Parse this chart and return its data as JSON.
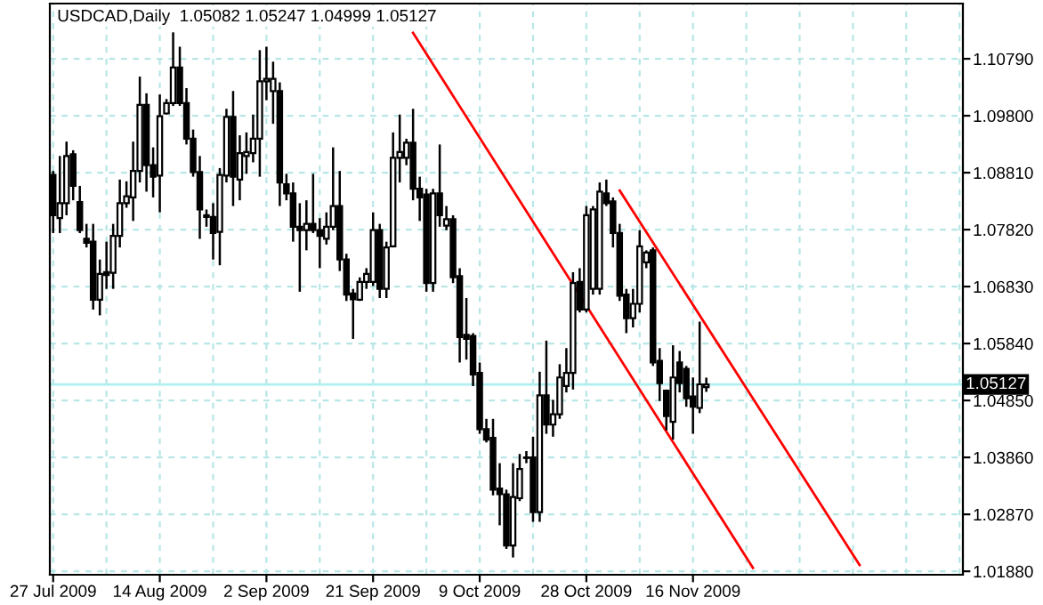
{
  "chart_data": {
    "type": "candlestick",
    "title": "USDCAD,Daily  1.05082 1.05247 1.04999 1.05127",
    "color": "#000000",
    "categories": [
      "27 Jul 2009",
      null,
      null,
      null,
      null,
      null,
      null,
      null,
      null,
      null,
      null,
      null,
      null,
      null,
      null,
      null,
      "14 Aug 2009",
      null,
      null,
      null,
      null,
      null,
      null,
      null,
      null,
      null,
      null,
      null,
      null,
      null,
      null,
      null,
      "2 Sep 2009",
      null,
      null,
      null,
      null,
      null,
      null,
      null,
      null,
      null,
      null,
      null,
      null,
      null,
      null,
      null,
      "21 Sep 2009",
      null,
      null,
      null,
      null,
      null,
      null,
      null,
      null,
      null,
      null,
      null,
      null,
      null,
      null,
      null,
      "9 Oct 2009",
      null,
      null,
      null,
      null,
      null,
      null,
      null,
      null,
      null,
      null,
      null,
      null,
      null,
      null,
      null,
      "28 Oct 2009",
      null,
      null,
      null,
      null,
      null,
      null,
      null,
      null,
      null,
      null,
      null,
      null,
      null,
      null,
      null,
      "16 Nov 2009",
      null,
      null,
      null,
      null,
      null,
      null,
      null,
      null,
      null,
      null,
      null,
      null,
      null,
      null,
      null,
      null,
      null,
      null,
      null,
      null,
      null,
      null,
      null,
      null,
      null,
      null,
      null,
      null,
      null,
      null,
      null,
      null,
      null,
      null,
      null,
      null,
      null,
      null,
      null,
      null
    ],
    "ohlc": [
      [
        1.0877,
        1.0884,
        1.0776,
        1.0807
      ],
      [
        1.0802,
        1.091,
        1.0776,
        1.0828
      ],
      [
        1.0828,
        1.0935,
        1.0807,
        1.091
      ],
      [
        1.0913,
        1.092,
        1.0833,
        1.0858
      ],
      [
        1.083,
        1.0858,
        1.0776,
        1.0781
      ],
      [
        1.0766,
        1.0792,
        1.0751,
        1.0759
      ],
      [
        1.0761,
        1.0792,
        1.0643,
        1.066
      ],
      [
        1.066,
        1.073,
        1.0633,
        1.0705
      ],
      [
        1.0708,
        1.0761,
        1.0679,
        1.0703
      ],
      [
        1.0707,
        1.0792,
        1.0679,
        1.0771
      ],
      [
        1.0771,
        1.0869,
        1.0751,
        1.0828
      ],
      [
        1.0828,
        1.0866,
        1.082,
        1.084
      ],
      [
        1.0838,
        1.0935,
        1.0797,
        1.0884
      ],
      [
        1.0884,
        1.1048,
        1.0864,
        1.0999
      ],
      [
        1.0999,
        1.1019,
        1.0848,
        1.0894
      ],
      [
        1.0894,
        1.0925,
        1.0838,
        1.0874
      ],
      [
        1.0876,
        1.1017,
        1.0812,
        1.0979
      ],
      [
        1.0984,
        1.1009,
        1.0982,
        1.1002
      ],
      [
        1.1002,
        1.1125,
        1.0997,
        1.1064
      ],
      [
        1.1064,
        1.11,
        1.0997,
        1.1002
      ],
      [
        1.1002,
        1.1028,
        1.093,
        1.094
      ],
      [
        1.094,
        1.0956,
        1.0874,
        1.0882
      ],
      [
        1.0882,
        1.091,
        1.0766,
        1.0817
      ],
      [
        1.0807,
        1.0817,
        1.0787,
        1.0804
      ],
      [
        1.0804,
        1.0828,
        1.073,
        1.0776
      ],
      [
        1.0778,
        1.0889,
        1.072,
        1.0877
      ],
      [
        1.0876,
        1.0992,
        1.0864,
        1.0978
      ],
      [
        1.0978,
        1.1023,
        1.0823,
        1.0874
      ],
      [
        1.0869,
        1.0946,
        1.0833,
        1.0915
      ],
      [
        1.091,
        1.0951,
        1.0879,
        1.0917
      ],
      [
        1.0915,
        1.0982,
        1.0899,
        1.094
      ],
      [
        1.094,
        1.1094,
        1.0874,
        1.104
      ],
      [
        1.104,
        1.11,
        1.1007,
        1.1044
      ],
      [
        1.1023,
        1.1074,
        1.0966,
        1.1044
      ],
      [
        1.1023,
        1.1038,
        1.0823,
        1.0864
      ],
      [
        1.0861,
        1.0879,
        1.0833,
        1.0845
      ],
      [
        1.0845,
        1.0864,
        1.0761,
        1.0787
      ],
      [
        1.0787,
        1.0828,
        1.0674,
        1.0781
      ],
      [
        1.0781,
        1.0833,
        1.0746,
        1.0792
      ],
      [
        1.0792,
        1.0879,
        1.0776,
        1.0781
      ],
      [
        1.0781,
        1.0802,
        1.0715,
        1.0771
      ],
      [
        1.0766,
        1.0812,
        1.0756,
        1.0787
      ],
      [
        1.0787,
        1.0925,
        1.0781,
        1.0823
      ],
      [
        1.0823,
        1.0884,
        1.071,
        1.073
      ],
      [
        1.073,
        1.074,
        1.0658,
        1.0669
      ],
      [
        1.0671,
        1.0679,
        1.0592,
        1.0661
      ],
      [
        1.066,
        1.0699,
        1.0658,
        1.0691
      ],
      [
        1.0691,
        1.0715,
        1.0679,
        1.0705
      ],
      [
        1.0691,
        1.0812,
        1.0684,
        1.0781
      ],
      [
        1.0781,
        1.0792,
        1.0663,
        1.0679
      ],
      [
        1.0679,
        1.0761,
        1.0663,
        1.0751
      ],
      [
        1.0753,
        1.0951,
        1.0751,
        1.0907
      ],
      [
        1.0907,
        1.0982,
        1.0864,
        1.0917
      ],
      [
        1.0907,
        1.094,
        1.0894,
        1.0933
      ],
      [
        1.0933,
        1.0992,
        1.0833,
        1.0853
      ],
      [
        1.0853,
        1.0874,
        1.0797,
        1.0838
      ],
      [
        1.0843,
        1.0853,
        1.0674,
        1.0689
      ],
      [
        1.0689,
        1.0853,
        1.0674,
        1.0845
      ],
      [
        1.0845,
        1.093,
        1.0787,
        1.0807
      ],
      [
        1.0789,
        1.0823,
        1.0781,
        1.08
      ],
      [
        1.08,
        1.0807,
        1.0689,
        1.0699
      ],
      [
        1.0701,
        1.0715,
        1.0551,
        1.0595
      ],
      [
        1.0599,
        1.0663,
        1.0556,
        1.0592
      ],
      [
        1.0597,
        1.0602,
        1.051,
        1.053
      ],
      [
        1.0533,
        1.0551,
        1.0427,
        1.0435
      ],
      [
        1.0435,
        1.0453,
        1.0412,
        1.0417
      ],
      [
        1.042,
        1.0453,
        1.032,
        1.033
      ],
      [
        1.0332,
        1.0376,
        1.0268,
        1.0322
      ],
      [
        1.0322,
        1.033,
        1.0227,
        1.0233
      ],
      [
        1.0233,
        1.0376,
        1.0212,
        1.0317
      ],
      [
        1.0315,
        1.0392,
        1.031,
        1.0366
      ],
      [
        1.0386,
        1.0397,
        1.0376,
        1.0385
      ],
      [
        1.0386,
        1.0422,
        1.0274,
        1.0291
      ],
      [
        1.0291,
        1.0535,
        1.0274,
        1.0494
      ],
      [
        1.0494,
        1.0589,
        1.0427,
        1.0443
      ],
      [
        1.0443,
        1.0486,
        1.0422,
        1.0461
      ],
      [
        1.0461,
        1.0548,
        1.0453,
        1.0525
      ],
      [
        1.051,
        1.0576,
        1.0499,
        1.0533
      ],
      [
        1.0533,
        1.0708,
        1.0504,
        1.0689
      ],
      [
        1.0691,
        1.0715,
        1.0638,
        1.0643
      ],
      [
        1.0643,
        1.0823,
        1.0638,
        1.0807
      ],
      [
        1.0679,
        1.0823,
        1.0669,
        1.0817
      ],
      [
        1.0679,
        1.0864,
        1.0669,
        1.0848
      ],
      [
        1.0845,
        1.0869,
        1.0823,
        1.0828
      ],
      [
        1.0831,
        1.0838,
        1.0751,
        1.0776
      ],
      [
        1.0776,
        1.0792,
        1.0658,
        1.0667
      ],
      [
        1.0669,
        1.0679,
        1.0602,
        1.0628
      ],
      [
        1.0628,
        1.0679,
        1.0612,
        1.0653
      ],
      [
        1.0653,
        1.0781,
        1.0638,
        1.0753
      ],
      [
        1.0725,
        1.0746,
        1.0715,
        1.0742
      ],
      [
        1.0746,
        1.0751,
        1.0545,
        1.0551
      ],
      [
        1.0554,
        1.0576,
        1.0484,
        1.0515
      ],
      [
        1.0502,
        1.0504,
        1.0433,
        1.0458
      ],
      [
        1.0448,
        1.0581,
        1.0417,
        1.0525
      ],
      [
        1.0551,
        1.0571,
        1.0499,
        1.0515
      ],
      [
        1.054,
        1.0545,
        1.0474,
        1.0489
      ],
      [
        1.0492,
        1.0525,
        1.0427,
        1.0474
      ],
      [
        1.0472,
        1.0622,
        1.0463,
        1.0513
      ],
      [
        1.05082,
        1.05247,
        1.04999,
        1.05127
      ],
      null,
      null,
      null,
      null,
      null,
      null,
      null,
      null,
      null,
      null,
      null,
      null,
      null,
      null,
      null,
      null,
      null,
      null,
      null,
      null,
      null,
      null,
      null,
      null,
      null,
      null,
      null,
      null,
      null,
      null,
      null,
      null,
      null,
      null,
      null,
      null,
      null,
      null
    ],
    "series": [
      {
        "type": "line",
        "color": "#ff0000",
        "values": [
          null,
          null,
          null,
          null,
          null,
          null,
          null,
          null,
          null,
          null,
          null,
          null,
          null,
          null,
          null,
          null,
          null,
          null,
          null,
          null,
          null,
          null,
          null,
          null,
          null,
          null,
          null,
          null,
          null,
          null,
          null,
          null,
          null,
          null,
          null,
          null,
          null,
          null,
          null,
          null,
          null,
          null,
          null,
          null,
          null,
          null,
          null,
          null,
          null,
          null,
          null,
          null,
          null,
          null,
          1.1124,
          null,
          null,
          null,
          null,
          null,
          null,
          null,
          null,
          null,
          null,
          null,
          null,
          null,
          null,
          null,
          null,
          null,
          null,
          null,
          null,
          null,
          null,
          null,
          null,
          null,
          null,
          null,
          null,
          null,
          null,
          null,
          null,
          null,
          null,
          null,
          null,
          null,
          null,
          null,
          null,
          null,
          null,
          null,
          null,
          null,
          null,
          null,
          null,
          null,
          null,
          1.0194,
          null,
          null,
          null,
          null,
          null,
          null,
          null,
          null,
          null,
          null,
          null,
          null,
          null,
          null,
          null,
          null,
          null,
          null,
          null,
          null,
          null,
          null,
          null,
          null,
          null,
          null,
          null,
          null,
          null,
          null,
          null
        ]
      },
      {
        "type": "line",
        "color": "#ff0000",
        "values": [
          null,
          null,
          null,
          null,
          null,
          null,
          null,
          null,
          null,
          null,
          null,
          null,
          null,
          null,
          null,
          null,
          null,
          null,
          null,
          null,
          null,
          null,
          null,
          null,
          null,
          null,
          null,
          null,
          null,
          null,
          null,
          null,
          null,
          null,
          null,
          null,
          null,
          null,
          null,
          null,
          null,
          null,
          null,
          null,
          null,
          null,
          null,
          null,
          null,
          null,
          null,
          null,
          null,
          null,
          null,
          null,
          null,
          null,
          null,
          null,
          null,
          null,
          null,
          null,
          null,
          null,
          null,
          null,
          null,
          null,
          null,
          null,
          null,
          null,
          null,
          null,
          null,
          null,
          null,
          null,
          null,
          null,
          null,
          null,
          null,
          1.085,
          null,
          null,
          null,
          null,
          null,
          null,
          null,
          null,
          null,
          null,
          null,
          null,
          null,
          null,
          null,
          null,
          null,
          null,
          null,
          null,
          null,
          null,
          null,
          null,
          null,
          null,
          null,
          null,
          null,
          null,
          null,
          null,
          null,
          null,
          null,
          1.0199,
          null,
          null,
          null,
          null,
          null,
          null,
          null,
          null,
          null,
          null,
          null,
          null,
          null,
          null,
          null
        ]
      }
    ],
    "ref_lines": [
      {
        "axis": "y",
        "value": 1.05127,
        "label": "1.05127",
        "color": "#b0f0f0"
      }
    ],
    "ylim": [
      1.0182,
      1.1175
    ],
    "yticks": [
      {
        "value": 1.0188,
        "label": "1.01880"
      },
      {
        "value": 1.0287,
        "label": "1.02870"
      },
      {
        "value": 1.0386,
        "label": "1.03860"
      },
      {
        "value": 1.0485,
        "label": "1.04850"
      },
      {
        "value": 1.0584,
        "label": "1.05840"
      },
      {
        "value": 1.0683,
        "label": "1.06830"
      },
      {
        "value": 1.0782,
        "label": "1.07820"
      },
      {
        "value": 1.0881,
        "label": "1.08810"
      },
      {
        "value": 1.098,
        "label": "1.09800"
      },
      {
        "value": 1.1079,
        "label": "1.10790"
      }
    ],
    "grid": true,
    "legend": false
  }
}
